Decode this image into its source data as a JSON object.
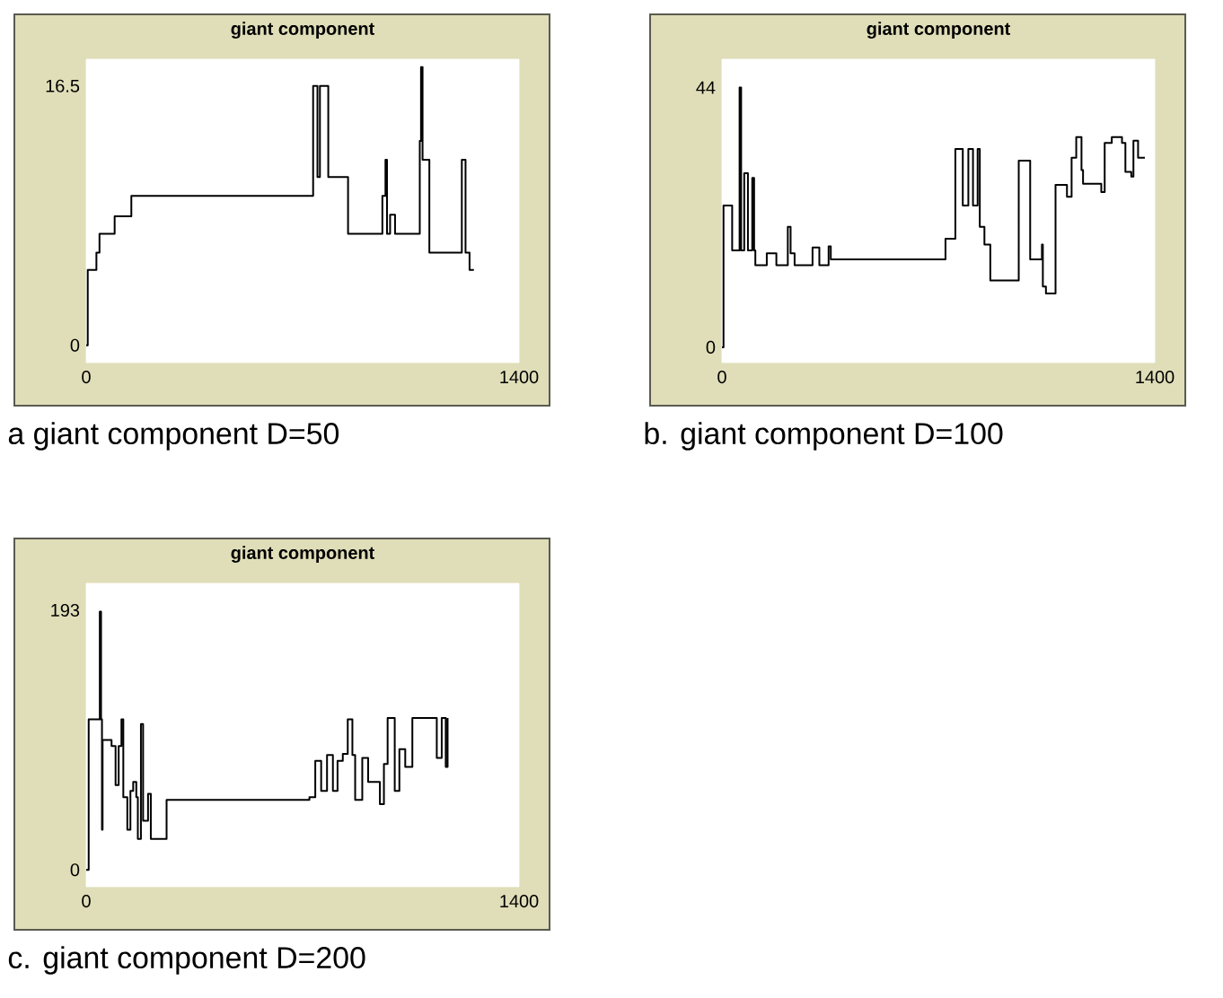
{
  "chart_data": [
    {
      "type": "step",
      "title": "giant component",
      "annotations": [
        "a giant component D=50"
      ],
      "color": "#000000",
      "xlim": [
        0,
        1400
      ],
      "ylim": [
        -1.1,
        18.2
      ],
      "xticks": [
        0,
        1400
      ],
      "yticks": [
        0,
        16.5
      ],
      "x": [
        0,
        5,
        33,
        43,
        92,
        146,
        734,
        748,
        756,
        783,
        847,
        958,
        968,
        973,
        983,
        999,
        1079,
        1083,
        1088,
        1110,
        1215,
        1227,
        1240,
        1254
      ],
      "values": [
        0,
        4.8,
        5.9,
        7.1,
        8.2,
        9.5,
        16.5,
        10.7,
        16.5,
        10.7,
        7.1,
        9.5,
        11.8,
        7.1,
        8.3,
        7.1,
        13.0,
        17.7,
        11.8,
        5.9,
        11.8,
        5.9,
        4.8,
        4.8
      ]
    },
    {
      "type": "step",
      "title": "giant component",
      "annotations": [
        "b. giant component D=100"
      ],
      "color": "#000000",
      "xlim": [
        0,
        1400
      ],
      "ylim": [
        -2.6,
        48.8
      ],
      "xticks": [
        0,
        1400
      ],
      "yticks": [
        0,
        44
      ],
      "x": [
        0,
        5,
        33,
        57,
        62,
        72,
        84,
        98,
        104,
        108,
        145,
        176,
        213,
        222,
        235,
        293,
        315,
        345,
        352,
        723,
        755,
        779,
        797,
        812,
        827,
        834,
        849,
        868,
        960,
        997,
        1035,
        1038,
        1048,
        1079,
        1116,
        1131,
        1146,
        1163,
        1168,
        1227,
        1238,
        1261,
        1294,
        1305,
        1324,
        1331,
        1346,
        1368
      ],
      "values": [
        0,
        24.0,
        16.4,
        44,
        16.4,
        29.5,
        16.4,
        28.7,
        16.4,
        13.9,
        15.9,
        13.9,
        20.4,
        15.9,
        13.9,
        16.9,
        13.9,
        17.1,
        14.9,
        18.4,
        33.6,
        24.0,
        33.6,
        24.0,
        33.6,
        20.4,
        17.4,
        11.3,
        31.6,
        14.9,
        17.4,
        10.3,
        9.1,
        27.5,
        25.5,
        32.1,
        35.6,
        30.0,
        27.7,
        26.3,
        34.6,
        35.6,
        34.6,
        29.7,
        28.9,
        35.0,
        32.1,
        32.1
      ]
    },
    {
      "type": "step",
      "title": "giant component",
      "annotations": [
        "c. giant component D=200"
      ],
      "color": "#000000",
      "xlim": [
        0,
        1400
      ],
      "ylim": [
        -12.5,
        213
      ],
      "xticks": [
        0,
        1400
      ],
      "yticks": [
        0,
        193
      ],
      "x": [
        0,
        8,
        44,
        48,
        51,
        53,
        82,
        95,
        105,
        114,
        120,
        133,
        143,
        152,
        162,
        167,
        177,
        184,
        200,
        209,
        260,
        722,
        741,
        760,
        779,
        798,
        813,
        830,
        846,
        861,
        870,
        893,
        912,
        950,
        963,
        975,
        998,
        1013,
        1032,
        1055,
        1134,
        1150,
        1163,
        1169
      ],
      "values": [
        0,
        112,
        192,
        112,
        29.8,
        96.5,
        92,
        63,
        92,
        112,
        54,
        29.8,
        58.7,
        65.4,
        54,
        23.1,
        108.5,
        36.5,
        56.5,
        23.1,
        52,
        54,
        81,
        58.7,
        85.4,
        58.7,
        81,
        86.3,
        112,
        85.4,
        52,
        83.2,
        65.4,
        48.9,
        78.7,
        113,
        58.7,
        89.8,
        76.5,
        113,
        83.2,
        113,
        76.5,
        113
      ]
    }
  ]
}
